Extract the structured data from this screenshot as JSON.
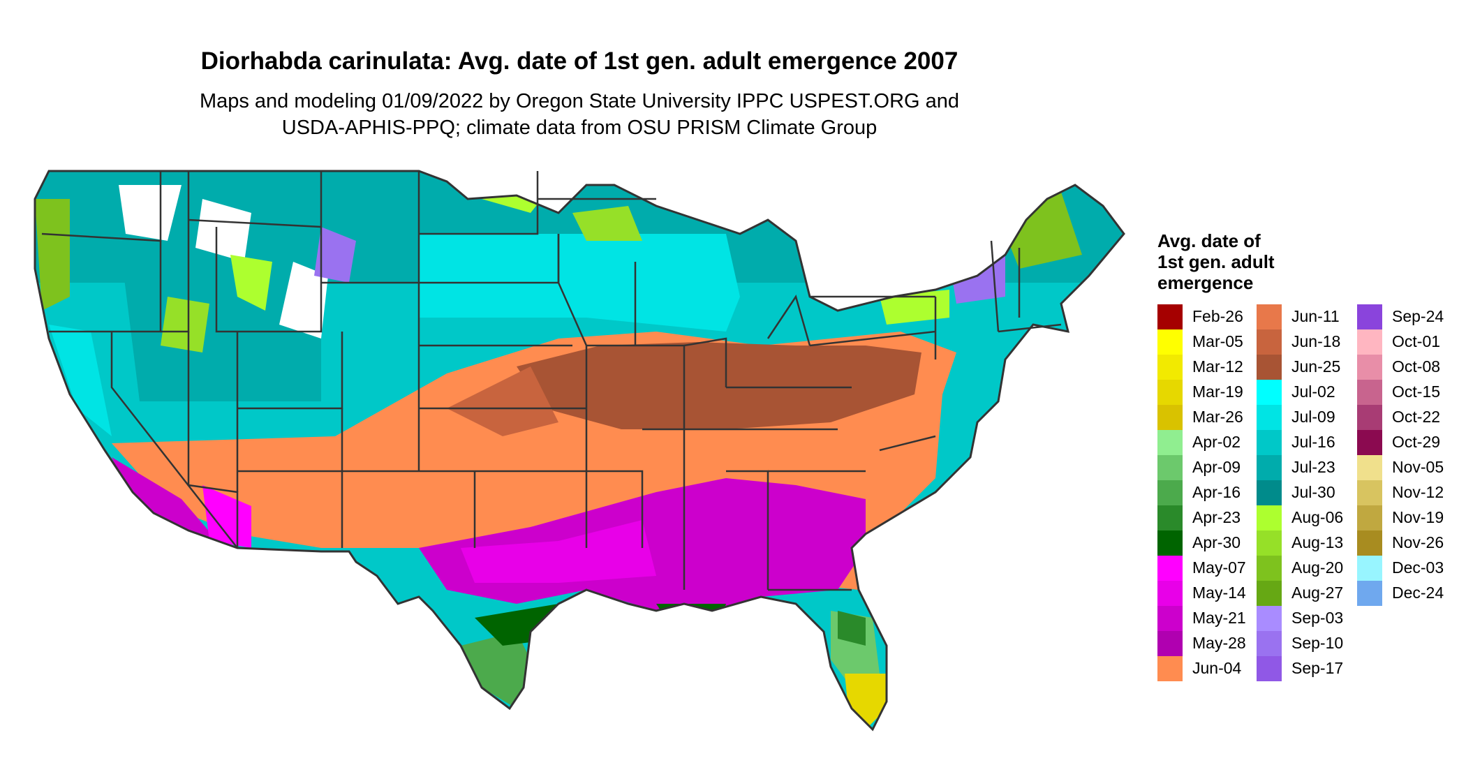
{
  "header": {
    "title": "Diorhabda carinulata: Avg. date of 1st gen. adult emergence 2007",
    "subtitle_line1": "Maps and modeling 01/09/2022 by Oregon State University IPPC USPEST.ORG and",
    "subtitle_line2": "USDA-APHIS-PPQ; climate data from OSU PRISM Climate Group"
  },
  "legend": {
    "title_line1": "Avg. date of",
    "title_line2": "1st gen. adult",
    "title_line3": "emergence",
    "columns": [
      [
        {
          "label": "Feb-26",
          "color": "#a50000"
        },
        {
          "label": "Mar-05",
          "color": "#ffff00"
        },
        {
          "label": "Mar-12",
          "color": "#f2ea00"
        },
        {
          "label": "Mar-19",
          "color": "#e6d800"
        },
        {
          "label": "Mar-26",
          "color": "#d9c200"
        },
        {
          "label": "Apr-02",
          "color": "#90ee90"
        },
        {
          "label": "Apr-09",
          "color": "#6cc96c"
        },
        {
          "label": "Apr-16",
          "color": "#4caa4c"
        },
        {
          "label": "Apr-23",
          "color": "#2a8a2a"
        },
        {
          "label": "Apr-30",
          "color": "#006400"
        },
        {
          "label": "May-07",
          "color": "#ff00ff"
        },
        {
          "label": "May-14",
          "color": "#e800e8"
        },
        {
          "label": "May-21",
          "color": "#cc00cc"
        },
        {
          "label": "May-28",
          "color": "#b000b0"
        },
        {
          "label": "Jun-04",
          "color": "#ff8c50"
        }
      ],
      [
        {
          "label": "Jun-11",
          "color": "#e8784a"
        },
        {
          "label": "Jun-18",
          "color": "#c8643e"
        },
        {
          "label": "Jun-25",
          "color": "#a85434"
        },
        {
          "label": "Jul-02",
          "color": "#00ffff"
        },
        {
          "label": "Jul-09",
          "color": "#00e4e4"
        },
        {
          "label": "Jul-16",
          "color": "#00c8c8"
        },
        {
          "label": "Jul-23",
          "color": "#00acac"
        },
        {
          "label": "Jul-30",
          "color": "#008b8b"
        },
        {
          "label": "Aug-06",
          "color": "#adff2f"
        },
        {
          "label": "Aug-13",
          "color": "#96e028"
        },
        {
          "label": "Aug-20",
          "color": "#7ec21e"
        },
        {
          "label": "Aug-27",
          "color": "#66a814"
        },
        {
          "label": "Sep-03",
          "color": "#a98cff"
        },
        {
          "label": "Sep-10",
          "color": "#9a72f0"
        },
        {
          "label": "Sep-17",
          "color": "#9058e6"
        }
      ],
      [
        {
          "label": "Sep-24",
          "color": "#8a44dc"
        },
        {
          "label": "Oct-01",
          "color": "#ffb6c1"
        },
        {
          "label": "Oct-08",
          "color": "#e88ea8"
        },
        {
          "label": "Oct-15",
          "color": "#c8648e"
        },
        {
          "label": "Oct-22",
          "color": "#a83c74"
        },
        {
          "label": "Oct-29",
          "color": "#8b0a50"
        },
        {
          "label": "Nov-05",
          "color": "#f0e08c"
        },
        {
          "label": "Nov-12",
          "color": "#d8c460"
        },
        {
          "label": "Nov-19",
          "color": "#c0a840"
        },
        {
          "label": "Nov-26",
          "color": "#a88c20"
        },
        {
          "label": "Dec-03",
          "color": "#98f5ff"
        },
        {
          "label": "Dec-24",
          "color": "#6fa8ee"
        }
      ]
    ]
  }
}
